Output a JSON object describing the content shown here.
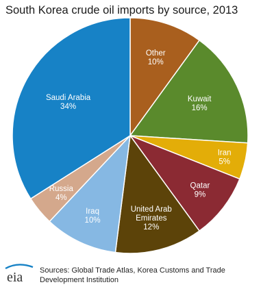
{
  "chart_data": {
    "type": "pie",
    "title": "South Korea crude oil imports by source, 2013",
    "slices": [
      {
        "name": "Other",
        "value": 10,
        "label": "10%",
        "color": "#a95f1e"
      },
      {
        "name": "Kuwait",
        "value": 16,
        "label": "16%",
        "color": "#5a8a2c"
      },
      {
        "name": "Iran",
        "value": 5,
        "label": "5%",
        "color": "#e3ad08"
      },
      {
        "name": "Qatar",
        "value": 9,
        "label": "9%",
        "color": "#8b2a33"
      },
      {
        "name": "United Arab Emirates",
        "value": 12,
        "label": "12%",
        "color": "#5c4309"
      },
      {
        "name": "Iraq",
        "value": 10,
        "label": "10%",
        "color": "#86b8e3"
      },
      {
        "name": "Russia",
        "value": 4,
        "label": "4%",
        "color": "#d4a88c"
      },
      {
        "name": "Saudi Arabia",
        "value": 34,
        "label": "34%",
        "color": "#1782c6"
      }
    ]
  },
  "footer": {
    "logo_text": "eia",
    "sources": "Sources: Global Trade Atlas, Korea Customs and Trade Development Institution"
  }
}
